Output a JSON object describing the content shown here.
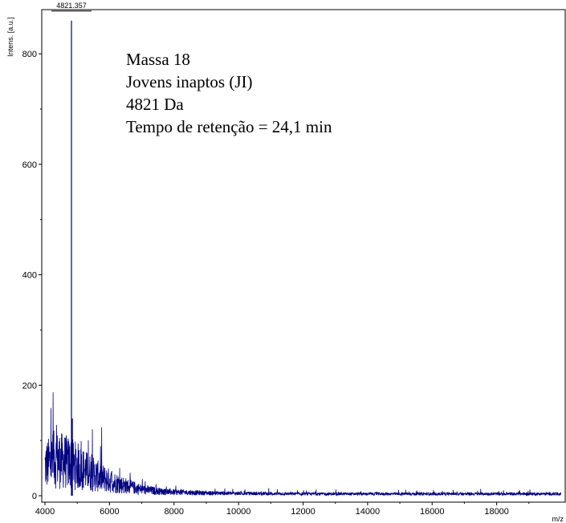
{
  "chart_data": {
    "type": "line",
    "title": "",
    "xlabel": "m/z",
    "ylabel": "Intens. [a.u.]",
    "xlim": [
      4000,
      20000
    ],
    "ylim": [
      0,
      880
    ],
    "x_ticks": [
      4000,
      6000,
      8000,
      10000,
      12000,
      14000,
      16000,
      18000
    ],
    "y_ticks": [
      0,
      200,
      400,
      600,
      800
    ],
    "series": [
      {
        "color": "#000080",
        "peak": {
          "x": 4821.357,
          "y": 860,
          "label": "4821.357"
        },
        "secondary_peak": {
          "x": 4821,
          "y": 140
        },
        "baseline_profile": [
          [
            4000,
            65
          ],
          [
            4300,
            80
          ],
          [
            4600,
            75
          ],
          [
            5000,
            65
          ],
          [
            5400,
            50
          ],
          [
            5800,
            38
          ],
          [
            6200,
            28
          ],
          [
            6600,
            20
          ],
          [
            7000,
            14
          ],
          [
            7500,
            10
          ],
          [
            8000,
            8
          ],
          [
            9000,
            6
          ],
          [
            10000,
            5
          ],
          [
            12000,
            4
          ],
          [
            14000,
            4
          ],
          [
            16000,
            4
          ],
          [
            18000,
            4
          ],
          [
            20000,
            4
          ]
        ]
      }
    ],
    "annotations": [
      "Massa 18",
      "Jovens inaptos (JI)",
      "4821 Da",
      "Tempo de retenção = 24,1  min"
    ],
    "grid": false,
    "legend": "none"
  }
}
